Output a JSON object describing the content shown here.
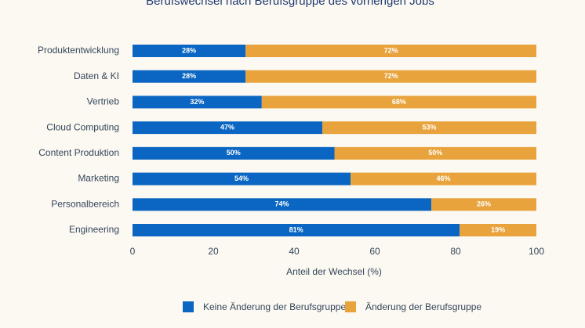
{
  "chart_data": {
    "type": "stacked_barh",
    "title": "Berufswechsel nach Berufsgruppe des vorherigen Jobs",
    "xlabel": "Anteil der Wechsel (%)",
    "categories": [
      "Produktentwicklung",
      "Daten & KI",
      "Vertrieb",
      "Cloud Computing",
      "Content Produktion",
      "Marketing",
      "Personalbereich",
      "Engineering"
    ],
    "series": [
      {
        "name": "Keine Änderung der Berufsgruppe",
        "color": "#0a66c2",
        "values": [
          28,
          28,
          32,
          47,
          50,
          54,
          74,
          81
        ],
        "value_labels": [
          "28%",
          "28%",
          "32%",
          "47%",
          "50%",
          "54%",
          "74%",
          "81%"
        ]
      },
      {
        "name": "Änderung der Berufsgruppe",
        "color": "#e8a33d",
        "values": [
          72,
          72,
          68,
          53,
          50,
          46,
          26,
          19
        ],
        "value_labels": [
          "72%",
          "72%",
          "68%",
          "53%",
          "50%",
          "46%",
          "26%",
          "19%"
        ]
      }
    ],
    "xlim": [
      0,
      100
    ],
    "xticks": [
      0,
      20,
      40,
      60,
      80,
      100
    ],
    "grid": false,
    "legend": "bottom"
  }
}
